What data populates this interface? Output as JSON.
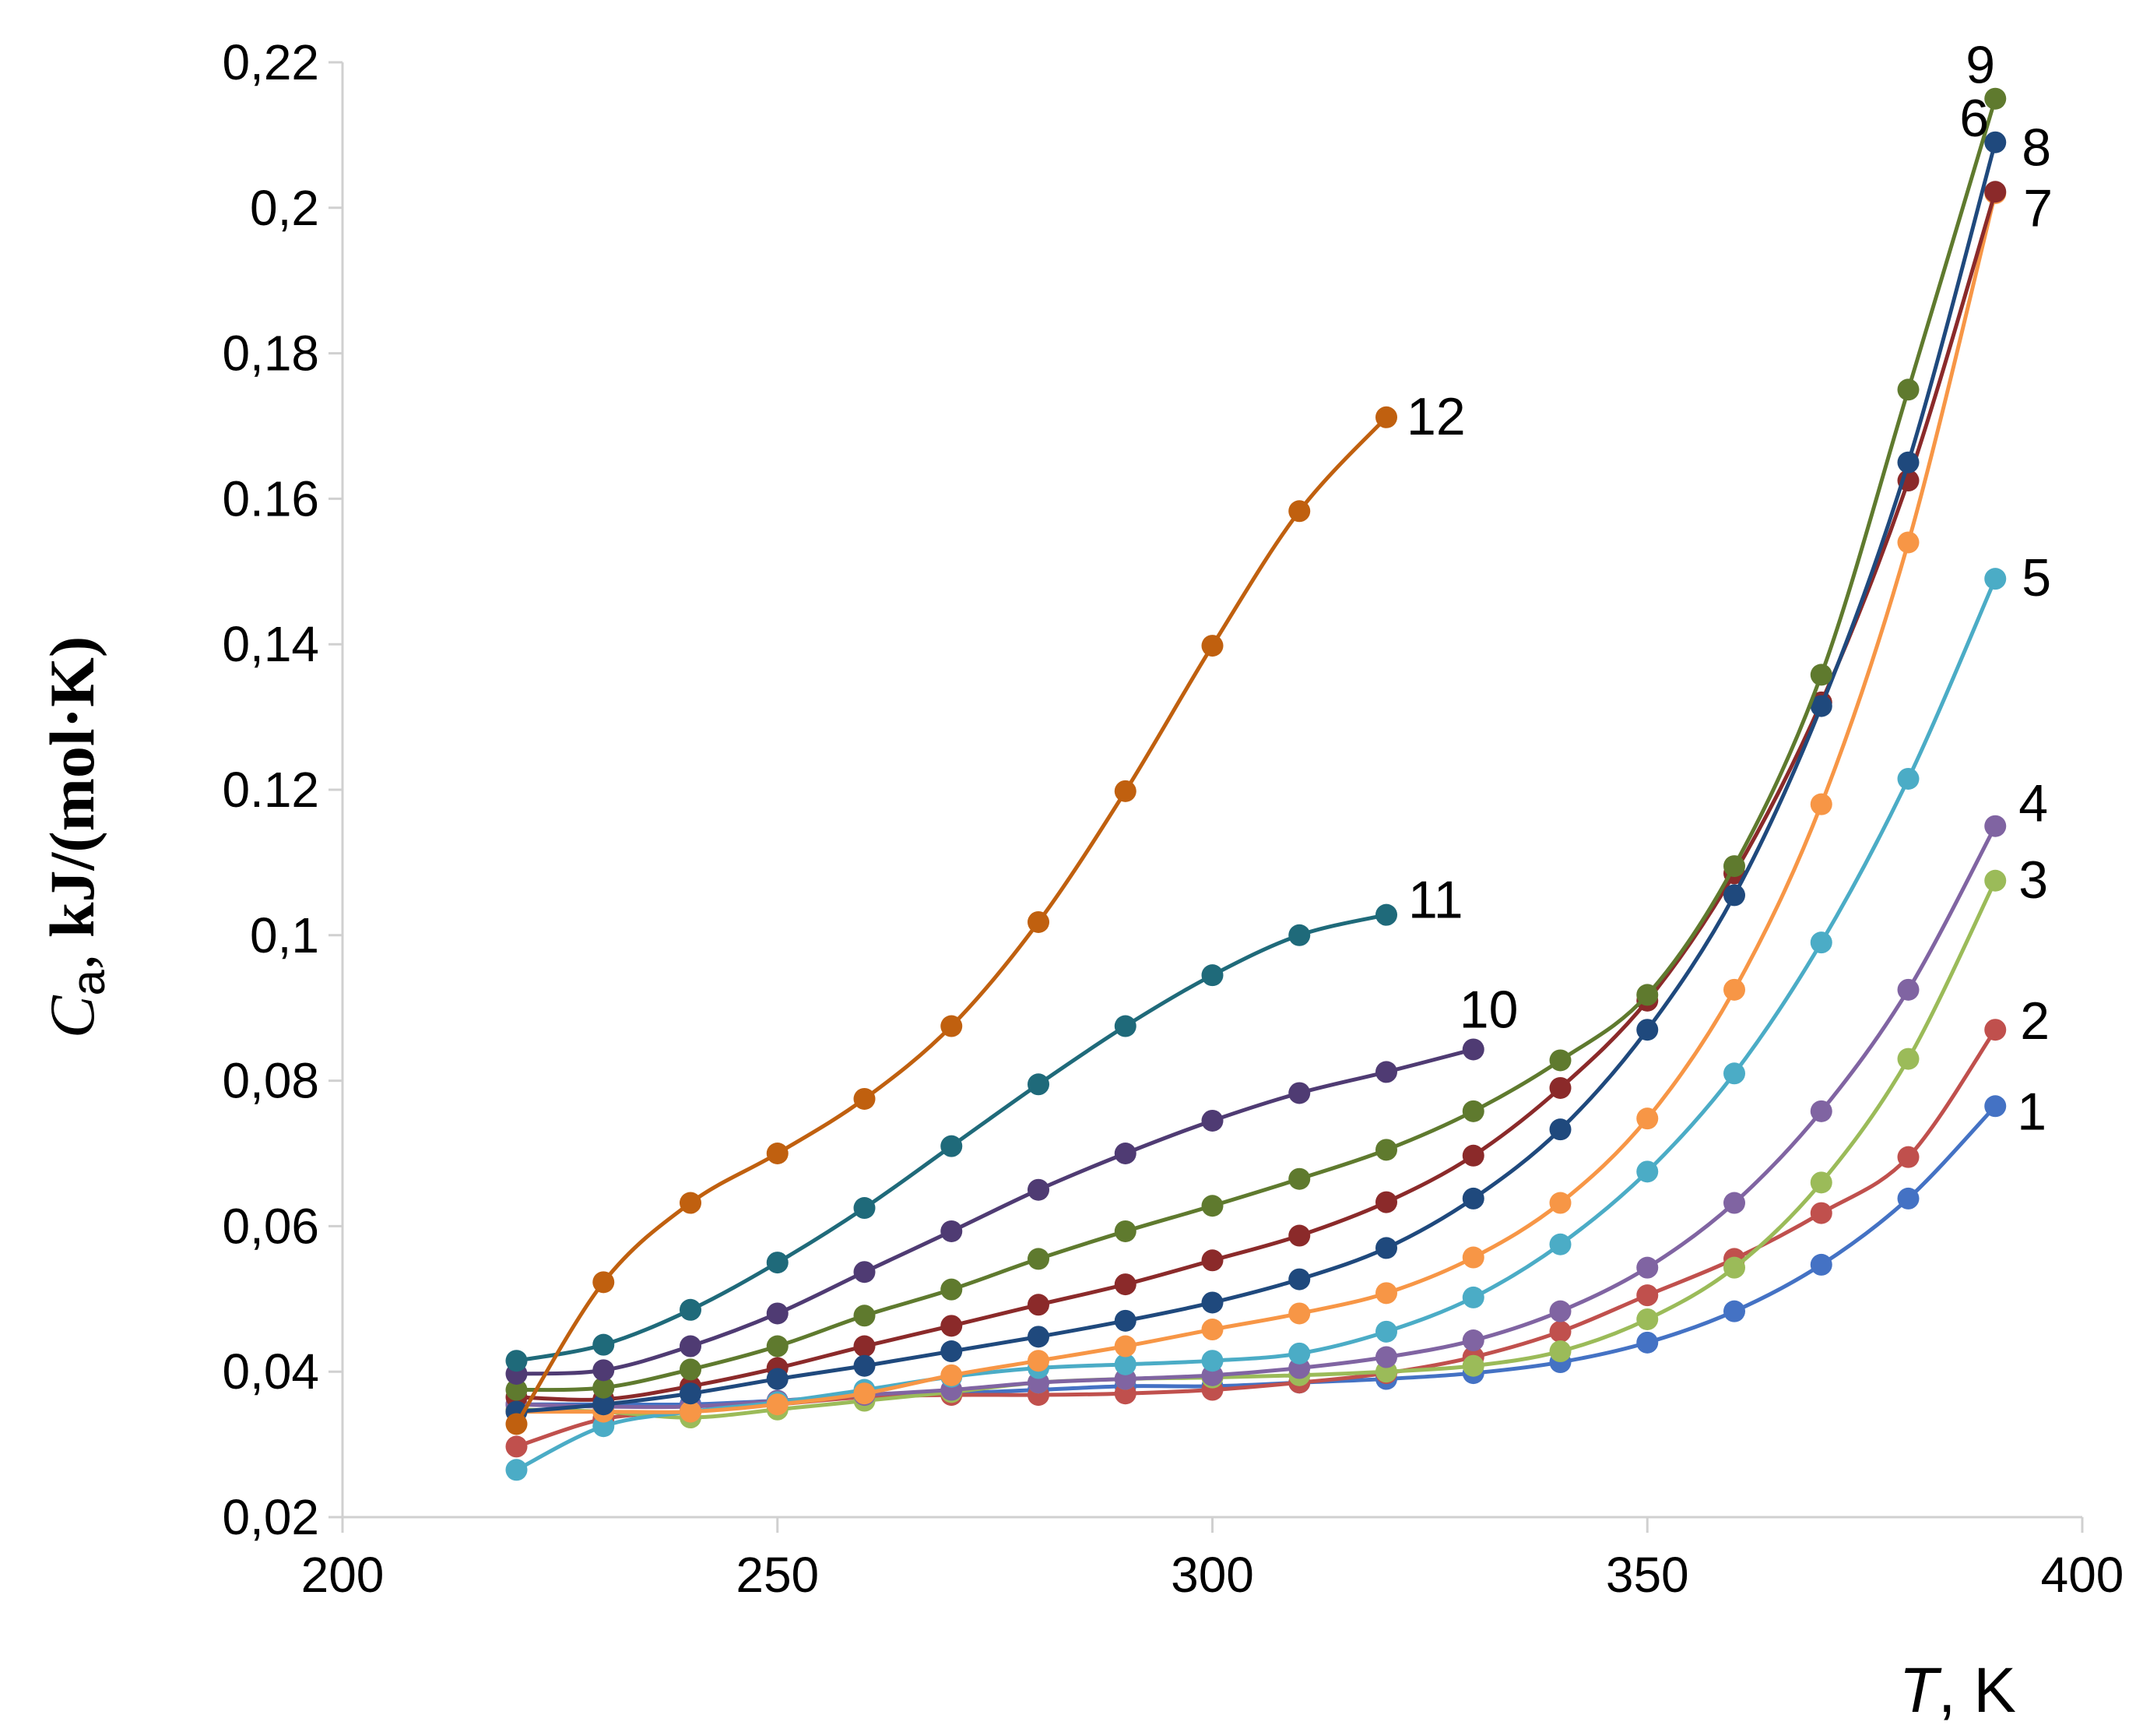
{
  "chart_data": {
    "type": "line",
    "title": "",
    "xlabel": {
      "symbol": "T",
      "unit": ", K"
    },
    "ylabel": {
      "symbol": "C",
      "subscript": "a",
      "comma": ", ",
      "unit": "kJ/(mol·K)"
    },
    "xlim": [
      200,
      400
    ],
    "ylim": [
      0.02,
      0.22
    ],
    "xticks": [
      200,
      250,
      300,
      350,
      400
    ],
    "xtick_labels": [
      "200",
      "250",
      "300",
      "350",
      "400"
    ],
    "yticks": [
      0.02,
      0.04,
      0.06,
      0.08,
      0.1,
      0.12,
      0.14,
      0.16,
      0.18,
      0.2,
      0.22
    ],
    "ytick_labels": [
      "0,02",
      "0,04",
      "0,06",
      "0,08",
      "0,1",
      "0.12",
      "0,14",
      "0.16",
      "0,18",
      "0,2",
      "0,22"
    ],
    "grid": false,
    "series": [
      {
        "name": "1",
        "color": "#4472C4",
        "x": [
          220,
          230,
          240,
          250,
          260,
          270,
          280,
          290,
          300,
          310,
          320,
          330,
          340,
          350,
          360,
          370,
          380,
          390
        ],
        "y": [
          0.0355,
          0.0355,
          0.0355,
          0.036,
          0.0365,
          0.037,
          0.0375,
          0.038,
          0.038,
          0.0385,
          0.039,
          0.0398,
          0.0413,
          0.044,
          0.0483,
          0.0547,
          0.0638,
          0.0765
        ]
      },
      {
        "name": "2",
        "color": "#C0504D",
        "x": [
          220,
          230,
          240,
          250,
          260,
          270,
          280,
          290,
          300,
          310,
          320,
          330,
          340,
          350,
          360,
          370,
          380,
          390
        ],
        "y": [
          0.0297,
          0.0335,
          0.0345,
          0.0355,
          0.0365,
          0.0368,
          0.0368,
          0.037,
          0.0375,
          0.0385,
          0.0398,
          0.042,
          0.0455,
          0.0505,
          0.0555,
          0.0618,
          0.0695,
          0.087
        ]
      },
      {
        "name": "3",
        "color": "#9BBB59",
        "x": [
          220,
          230,
          240,
          250,
          260,
          270,
          280,
          290,
          300,
          310,
          320,
          330,
          340,
          350,
          360,
          370,
          380,
          390
        ],
        "y": [
          0.0348,
          0.0345,
          0.0337,
          0.0348,
          0.036,
          0.0372,
          0.0385,
          0.039,
          0.0392,
          0.0395,
          0.04,
          0.0408,
          0.0428,
          0.0472,
          0.0543,
          0.066,
          0.083,
          0.1075
        ]
      },
      {
        "name": "4",
        "color": "#8064A2",
        "x": [
          220,
          230,
          240,
          250,
          260,
          270,
          280,
          290,
          300,
          310,
          320,
          330,
          340,
          350,
          360,
          370,
          380,
          390
        ],
        "y": [
          0.0355,
          0.0352,
          0.0352,
          0.036,
          0.0368,
          0.0375,
          0.0385,
          0.039,
          0.0395,
          0.0405,
          0.042,
          0.0443,
          0.0483,
          0.0543,
          0.0632,
          0.0758,
          0.0925,
          0.115
        ]
      },
      {
        "name": "5",
        "color": "#4BACC6",
        "x": [
          220,
          230,
          240,
          250,
          260,
          270,
          280,
          290,
          300,
          310,
          320,
          330,
          340,
          350,
          360,
          370,
          380,
          390
        ],
        "y": [
          0.0265,
          0.0325,
          0.0345,
          0.0358,
          0.0375,
          0.0393,
          0.0405,
          0.041,
          0.0415,
          0.0425,
          0.0455,
          0.0502,
          0.0575,
          0.0675,
          0.081,
          0.099,
          0.1215,
          0.149
        ]
      },
      {
        "name": "6",
        "color": "#F79646",
        "x": [
          220,
          230,
          240,
          250,
          260,
          270,
          280,
          290,
          300,
          310,
          320,
          330,
          340,
          350,
          360,
          370,
          380,
          390
        ],
        "y": [
          0.0345,
          0.0345,
          0.0345,
          0.0355,
          0.037,
          0.0395,
          0.0415,
          0.0435,
          0.0458,
          0.048,
          0.0508,
          0.0557,
          0.0632,
          0.0748,
          0.0925,
          0.118,
          0.154,
          0.202
        ]
      },
      {
        "name": "7",
        "color": "#8B2A2A",
        "x": [
          220,
          230,
          240,
          250,
          260,
          270,
          280,
          290,
          300,
          310,
          320,
          330,
          340,
          350,
          360,
          370,
          380,
          390
        ],
        "y": [
          0.0365,
          0.0362,
          0.038,
          0.0405,
          0.0435,
          0.0463,
          0.0492,
          0.052,
          0.0553,
          0.0587,
          0.0633,
          0.0697,
          0.079,
          0.091,
          0.1085,
          0.132,
          0.1625,
          0.2022
        ]
      },
      {
        "name": "8",
        "color": "#1F497D",
        "x": [
          220,
          230,
          240,
          250,
          260,
          270,
          280,
          290,
          300,
          310,
          320,
          330,
          340,
          350,
          360,
          370,
          380,
          390
        ],
        "y": [
          0.0345,
          0.0355,
          0.037,
          0.039,
          0.0408,
          0.0428,
          0.0448,
          0.047,
          0.0495,
          0.0527,
          0.057,
          0.0638,
          0.0733,
          0.087,
          0.1055,
          0.1315,
          0.165,
          0.209
        ]
      },
      {
        "name": "9",
        "color": "#5F7A2E",
        "x": [
          220,
          230,
          240,
          250,
          260,
          270,
          280,
          290,
          300,
          310,
          320,
          330,
          340,
          350,
          360,
          370,
          380,
          390
        ],
        "y": [
          0.0375,
          0.0378,
          0.0403,
          0.0435,
          0.0477,
          0.0513,
          0.0555,
          0.0593,
          0.0628,
          0.0665,
          0.0705,
          0.0758,
          0.0828,
          0.0918,
          0.1095,
          0.1358,
          0.175,
          0.215
        ]
      },
      {
        "name": "10",
        "color": "#4F3B73",
        "x": [
          220,
          230,
          240,
          250,
          260,
          270,
          280,
          290,
          300,
          310,
          320,
          330
        ],
        "y": [
          0.0397,
          0.0402,
          0.0435,
          0.048,
          0.0537,
          0.0593,
          0.065,
          0.07,
          0.0745,
          0.0783,
          0.0812,
          0.0843
        ]
      },
      {
        "name": "11",
        "color": "#1F6A7A",
        "x": [
          220,
          230,
          240,
          250,
          260,
          270,
          280,
          290,
          300,
          310,
          320
        ],
        "y": [
          0.0415,
          0.0437,
          0.0485,
          0.055,
          0.0625,
          0.071,
          0.0795,
          0.0875,
          0.0945,
          0.1,
          0.1028
        ]
      },
      {
        "name": "12",
        "color": "#C0600F",
        "x": [
          220,
          230,
          240,
          250,
          260,
          270,
          280,
          290,
          300,
          310,
          320
        ],
        "y": [
          0.0328,
          0.0523,
          0.0632,
          0.07,
          0.0775,
          0.0875,
          0.1018,
          0.1198,
          0.1398,
          0.1583,
          0.1712
        ]
      }
    ]
  }
}
